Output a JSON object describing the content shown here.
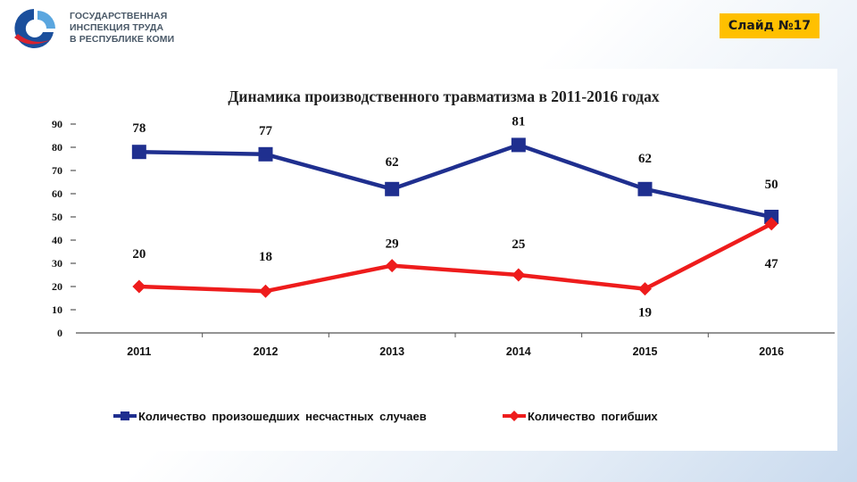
{
  "header": {
    "logo_lines": [
      "ГОСУДАРСТВЕННАЯ",
      "ИНСПЕКЦИЯ ТРУДА",
      "В РЕСПУБЛИКЕ КОМИ"
    ],
    "slide_label": "Слайд №17",
    "slide_badge_color": "#ffc000"
  },
  "chart_data": {
    "type": "line",
    "title": "Динамика производственного травматизма в 2011-2016 годах",
    "categories": [
      "2011",
      "2012",
      "2013",
      "2014",
      "2015",
      "2016"
    ],
    "y_ticks": [
      "0",
      "10",
      "20",
      "30",
      "40",
      "50",
      "60",
      "70",
      "80",
      "90"
    ],
    "ylim": [
      0,
      90
    ],
    "grid": false,
    "legend_position": "bottom",
    "series": [
      {
        "name": "Количество произошедших несчастных случаев",
        "values": [
          78,
          77,
          62,
          81,
          62,
          50
        ],
        "labels": [
          "78",
          "77",
          "62",
          "81",
          "62",
          "50"
        ],
        "color": "#1f2f8f",
        "marker": "square"
      },
      {
        "name": "Количество погибших",
        "values": [
          20,
          18,
          29,
          25,
          19,
          47
        ],
        "labels": [
          "20",
          "18",
          "29",
          "25",
          "19",
          "47"
        ],
        "color": "#ee1c1c",
        "marker": "diamond"
      }
    ]
  }
}
